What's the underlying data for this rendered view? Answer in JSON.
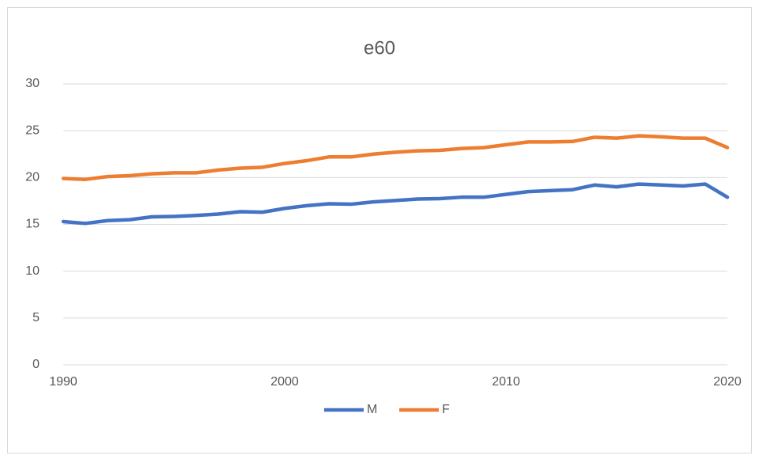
{
  "chart_data": {
    "type": "line",
    "title": "e60",
    "x": [
      1990,
      1991,
      1992,
      1993,
      1994,
      1995,
      1996,
      1997,
      1998,
      1999,
      2000,
      2001,
      2002,
      2003,
      2004,
      2005,
      2006,
      2007,
      2008,
      2009,
      2010,
      2011,
      2012,
      2013,
      2014,
      2015,
      2016,
      2017,
      2018,
      2019,
      2020
    ],
    "series": [
      {
        "name": "M",
        "color": "#4472c4",
        "values": [
          15.3,
          15.1,
          15.4,
          15.5,
          15.8,
          15.85,
          15.95,
          16.1,
          16.35,
          16.3,
          16.7,
          17.0,
          17.2,
          17.15,
          17.4,
          17.55,
          17.7,
          17.75,
          17.9,
          17.9,
          18.2,
          18.5,
          18.6,
          18.7,
          19.2,
          19.0,
          19.3,
          19.2,
          19.1,
          19.3,
          17.9
        ]
      },
      {
        "name": "F",
        "color": "#ed7d31",
        "values": [
          19.9,
          19.8,
          20.1,
          20.2,
          20.4,
          20.5,
          20.5,
          20.8,
          21.0,
          21.1,
          21.5,
          21.8,
          22.2,
          22.2,
          22.5,
          22.7,
          22.85,
          22.9,
          23.1,
          23.2,
          23.5,
          23.8,
          23.8,
          23.85,
          24.3,
          24.2,
          24.45,
          24.35,
          24.2,
          24.2,
          23.2
        ]
      }
    ],
    "xlim": [
      1990,
      2020
    ],
    "xticks": [
      1990,
      2000,
      2010,
      2020
    ],
    "ylim": [
      0,
      30
    ],
    "yticks": [
      0,
      5,
      10,
      15,
      20,
      25,
      30
    ],
    "grid": true,
    "legend": "bottom"
  }
}
